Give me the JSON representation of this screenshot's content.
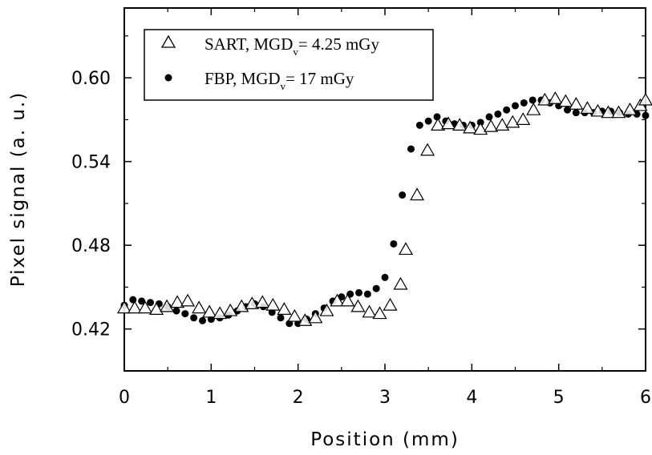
{
  "chart_data": {
    "type": "scatter",
    "xlabel": "Position (mm)",
    "ylabel": "Pixel signal (a. u.)",
    "xlim": [
      0,
      6
    ],
    "ylim": [
      0.39,
      0.65
    ],
    "x_ticks": [
      0,
      1,
      2,
      3,
      4,
      5,
      6
    ],
    "x_tick_labels": [
      "0",
      "1",
      "2",
      "3",
      "4",
      "5",
      "6"
    ],
    "y_ticks": [
      0.42,
      0.48,
      0.54,
      0.6
    ],
    "y_tick_labels": [
      "0.42",
      "0.48",
      "0.54",
      "0.60"
    ],
    "grid": false,
    "legend_position": "top-left",
    "series": [
      {
        "name": "SART, MGD_v = 4.25 mGy",
        "legend_label": {
          "main": "SART, MGD",
          "sub": "v",
          "rest": "= 4.25 mGy"
        },
        "marker": "open-triangle",
        "color": "#000000",
        "x": [
          0.0,
          0.12,
          0.24,
          0.37,
          0.49,
          0.61,
          0.73,
          0.86,
          0.98,
          1.1,
          1.22,
          1.35,
          1.47,
          1.59,
          1.71,
          1.84,
          1.96,
          2.08,
          2.2,
          2.33,
          2.45,
          2.57,
          2.69,
          2.82,
          2.94,
          3.06,
          3.18,
          3.24,
          3.37,
          3.49,
          3.61,
          3.73,
          3.86,
          3.98,
          4.1,
          4.22,
          4.35,
          4.47,
          4.59,
          4.71,
          4.84,
          4.96,
          5.08,
          5.2,
          5.33,
          5.45,
          5.57,
          5.69,
          5.82,
          5.94,
          6.0
        ],
        "y": [
          0.435,
          0.435,
          0.435,
          0.434,
          0.436,
          0.439,
          0.44,
          0.435,
          0.432,
          0.431,
          0.433,
          0.436,
          0.438,
          0.439,
          0.437,
          0.434,
          0.429,
          0.426,
          0.428,
          0.433,
          0.44,
          0.44,
          0.436,
          0.432,
          0.431,
          0.437,
          0.452,
          0.477,
          0.516,
          0.548,
          0.566,
          0.567,
          0.566,
          0.564,
          0.563,
          0.565,
          0.566,
          0.568,
          0.57,
          0.577,
          0.584,
          0.585,
          0.583,
          0.581,
          0.578,
          0.576,
          0.575,
          0.575,
          0.577,
          0.58,
          0.584
        ]
      },
      {
        "name": "FBP, MGD_v = 17 mGy",
        "legend_label": {
          "main": "FBP, MGD",
          "sub": "v",
          "rest": "= 17 mGy"
        },
        "marker": "filled-circle",
        "color": "#000000",
        "x": [
          0.0,
          0.1,
          0.2,
          0.3,
          0.4,
          0.5,
          0.6,
          0.7,
          0.8,
          0.9,
          1.0,
          1.1,
          1.2,
          1.3,
          1.4,
          1.5,
          1.6,
          1.7,
          1.8,
          1.9,
          2.0,
          2.1,
          2.2,
          2.3,
          2.4,
          2.5,
          2.6,
          2.7,
          2.8,
          2.9,
          3.0,
          3.1,
          3.2,
          3.3,
          3.4,
          3.5,
          3.6,
          3.7,
          3.8,
          3.9,
          4.0,
          4.1,
          4.2,
          4.3,
          4.4,
          4.5,
          4.6,
          4.7,
          4.8,
          4.9,
          5.0,
          5.1,
          5.2,
          5.3,
          5.4,
          5.5,
          5.6,
          5.7,
          5.8,
          5.9,
          6.0
        ],
        "y": [
          0.437,
          0.441,
          0.44,
          0.439,
          0.438,
          0.436,
          0.433,
          0.431,
          0.428,
          0.426,
          0.427,
          0.428,
          0.43,
          0.433,
          0.436,
          0.438,
          0.436,
          0.432,
          0.428,
          0.424,
          0.424,
          0.427,
          0.431,
          0.435,
          0.44,
          0.443,
          0.445,
          0.446,
          0.445,
          0.449,
          0.457,
          0.481,
          0.516,
          0.549,
          0.566,
          0.569,
          0.572,
          0.569,
          0.567,
          0.566,
          0.566,
          0.568,
          0.572,
          0.574,
          0.577,
          0.58,
          0.582,
          0.584,
          0.584,
          0.582,
          0.58,
          0.577,
          0.575,
          0.575,
          0.575,
          0.576,
          0.576,
          0.575,
          0.574,
          0.574,
          0.573
        ]
      }
    ]
  }
}
